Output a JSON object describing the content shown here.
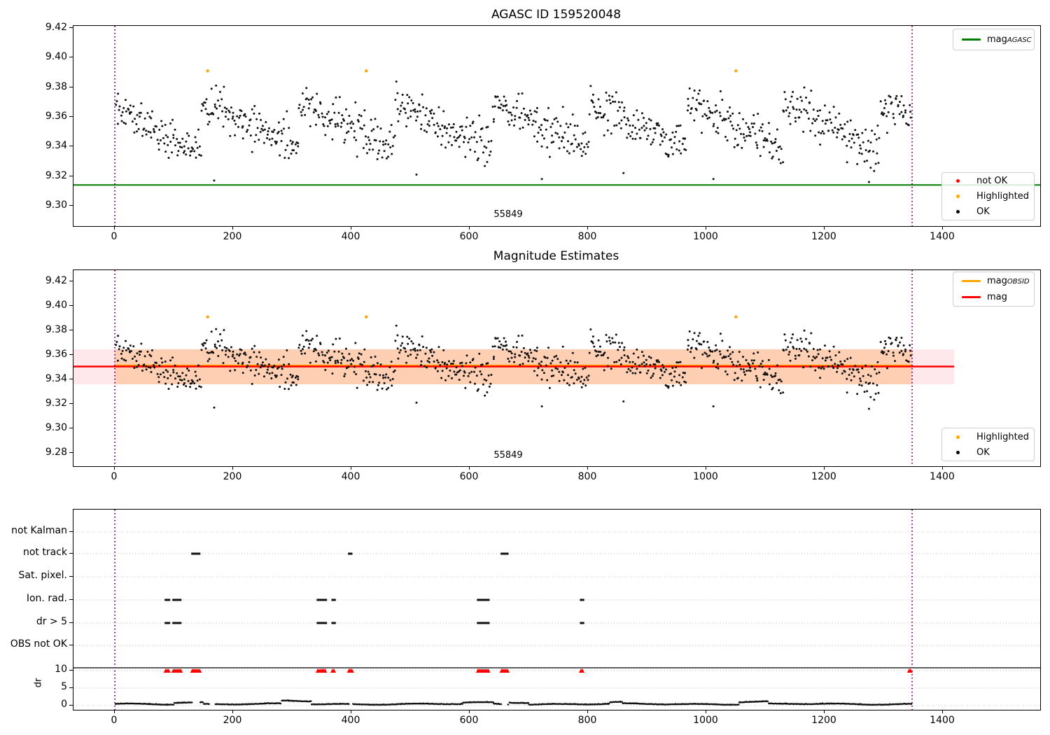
{
  "figure_title": "AGASC ID 159520048",
  "chart_data": [
    {
      "id": "top_magnitudes",
      "type": "scatter",
      "title": "AGASC ID 159520048",
      "xlim": [
        -70,
        1565
      ],
      "ylim": [
        9.285,
        9.422
      ],
      "xticks": [
        0,
        200,
        400,
        600,
        800,
        1000,
        1200,
        1400
      ],
      "yticks": [
        9.42,
        9.4,
        9.38,
        9.36,
        9.34,
        9.32,
        9.3
      ],
      "grid": false,
      "legend_position": "upper right",
      "line_legend": [
        {
          "label": "mag",
          "sub": "AGASC",
          "color": "#007d00"
        }
      ],
      "marker_legend": [
        {
          "label": "not OK",
          "color": "#ff0000"
        },
        {
          "label": "Highlighted",
          "color": "#ffa500"
        },
        {
          "label": "OK",
          "color": "#000000"
        }
      ],
      "agasc_mag_line": {
        "value": 9.314,
        "color": "#007d00"
      },
      "obsid_boundaries": {
        "values": [
          0,
          1348
        ],
        "color": "#8b008b",
        "style": "dotted"
      },
      "obsid_label": {
        "text": "55849",
        "x": 667
      },
      "highlighted_points": [
        {
          "x": 157,
          "y": 9.391
        },
        {
          "x": 425,
          "y": 9.391
        },
        {
          "x": 1050,
          "y": 9.391
        }
      ],
      "ok_scatter": {
        "seed": 11,
        "n": 960,
        "x_min": 2,
        "x_max": 1346,
        "base": 9.3385,
        "amp": 0.0315,
        "period": 164,
        "phase": 18,
        "noise": 0.01,
        "y_min": 9.3155,
        "y_max": 9.387,
        "color": "#111111"
      },
      "outlier_points": [
        {
          "x": 168,
          "y": 9.317
        },
        {
          "x": 510,
          "y": 9.321
        },
        {
          "x": 722,
          "y": 9.318
        },
        {
          "x": 860,
          "y": 9.322
        },
        {
          "x": 1012,
          "y": 9.318
        },
        {
          "x": 1275,
          "y": 9.316
        }
      ]
    },
    {
      "id": "magnitude_estimates",
      "type": "scatter",
      "title": "Magnitude Estimates",
      "xlim": [
        -70,
        1565
      ],
      "ylim": [
        9.269,
        9.429
      ],
      "xticks": [
        0,
        200,
        400,
        600,
        800,
        1000,
        1200,
        1400
      ],
      "yticks": [
        9.42,
        9.4,
        9.38,
        9.36,
        9.34,
        9.32,
        9.3,
        9.28
      ],
      "grid": false,
      "line_legend": [
        {
          "label": "mag",
          "sub": "OBSID",
          "color": "#ffa500"
        },
        {
          "label": "mag",
          "sub": "",
          "color": "#ff0000"
        }
      ],
      "marker_legend": [
        {
          "label": "Highlighted",
          "color": "#ffa500"
        },
        {
          "label": "OK",
          "color": "#000000"
        }
      ],
      "mag_line": {
        "value": 9.3505,
        "color": "#ff0000",
        "x_end": 1419
      },
      "mag_obsid_line": {
        "value": 9.3515,
        "color": "#ffa500"
      },
      "uncertainty_band": {
        "lo": 9.336,
        "hi": 9.3646,
        "x_end": 1419,
        "full_color": "rgba(255,80,110,0.13)",
        "obsid_color": "rgba(255,145,35,0.28)"
      },
      "obsid_boundaries": {
        "values": [
          0,
          1348
        ],
        "color": "#8b008b",
        "style": "dotted"
      },
      "obsid_label": {
        "text": "55849",
        "x": 667
      },
      "highlighted_points": [
        {
          "x": 157,
          "y": 9.391
        },
        {
          "x": 425,
          "y": 9.391
        },
        {
          "x": 1050,
          "y": 9.391
        }
      ]
    },
    {
      "id": "flags_and_dr",
      "type": "scatter",
      "categories": [
        "not Kalman",
        "not track",
        "Sat. pixel.",
        "Ion. rad.",
        "dr > 5",
        "OBS not OK"
      ],
      "dr_ticks": [
        10,
        5,
        0
      ],
      "dr_label": "dr",
      "xticks": [
        0,
        200,
        400,
        600,
        800,
        1000,
        1200,
        1400
      ],
      "grid": true,
      "gridline_color": "#bdbdbd",
      "obsid_boundaries": {
        "values": [
          0,
          1348
        ],
        "color": "#8b008b",
        "style": "dotted"
      },
      "flag_marks": {
        "not track": [
          [
            131,
            144
          ],
          [
            396,
            401
          ],
          [
            654,
            664
          ]
        ],
        "Ion. rad.": [
          [
            86,
            93
          ],
          [
            99,
            112
          ],
          [
            343,
            357
          ],
          [
            368,
            372
          ],
          [
            614,
            633
          ],
          [
            788,
            792
          ]
        ],
        "dr > 5": [
          [
            86,
            93
          ],
          [
            99,
            112
          ],
          [
            343,
            357
          ],
          [
            368,
            372
          ],
          [
            614,
            633
          ],
          [
            788,
            792
          ]
        ]
      },
      "flag_mark_color": "#111111",
      "dr_limit_markers": {
        "value": 10,
        "color": "#ff0000",
        "clusters": [
          [
            86,
            93
          ],
          [
            99,
            112
          ],
          [
            131,
            144
          ],
          [
            343,
            357
          ],
          [
            368,
            372
          ],
          [
            396,
            401
          ],
          [
            614,
            633
          ],
          [
            654,
            664
          ],
          [
            788,
            792
          ],
          [
            1343,
            1347
          ]
        ]
      },
      "dr_threshold_line": {
        "value": 10.8,
        "color": "#000000"
      },
      "dr_curve": {
        "seed": 5,
        "n": 1400,
        "x_min": 1,
        "x_max": 1347,
        "base": 0.38,
        "noise": 0.1,
        "color": "#111111",
        "bumps": [
          [
            100,
            150,
            0.5
          ],
          [
            282,
            332,
            0.85
          ],
          [
            588,
            640,
            0.4
          ],
          [
            666,
            700,
            0.5
          ],
          [
            836,
            858,
            0.45
          ],
          [
            1055,
            1105,
            0.65
          ]
        ],
        "gaps": [
          [
            131,
            144
          ],
          [
            160,
            170
          ],
          [
            396,
            401
          ],
          [
            654,
            664
          ]
        ]
      }
    }
  ]
}
